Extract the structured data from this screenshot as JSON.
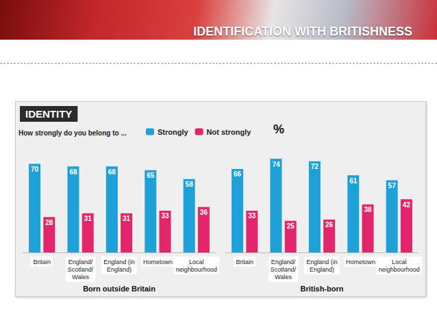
{
  "title": "IDENTIFICATION WITH BRITISHNESS",
  "header": "IDENTITY",
  "subtitle": "How strongly do you belong to ...",
  "unit": "%",
  "chart_data": [
    {
      "type": "bar",
      "title": "Born outside Britain",
      "categories": [
        "Britain",
        "England/ Scotland/ Wales",
        "England (in England)",
        "Hometown",
        "Local neighbourhood"
      ],
      "series": [
        {
          "name": "Strongly",
          "color": "#1ea0d8",
          "values": [
            70,
            68,
            68,
            65,
            58
          ]
        },
        {
          "name": "Not strongly",
          "color": "#e3256b",
          "values": [
            28,
            31,
            31,
            33,
            36
          ]
        }
      ],
      "ylim": [
        0,
        80
      ],
      "data_labels": true,
      "tick_labels": "x",
      "legend": "top-left"
    },
    {
      "type": "bar",
      "title": "British-born",
      "categories": [
        "Britain",
        "England/ Scotland/ Wales",
        "England (in England)",
        "Hometown",
        "Local neighbourhood"
      ],
      "series": [
        {
          "name": "Strongly",
          "color": "#1ea0d8",
          "values": [
            66,
            74,
            72,
            61,
            57
          ]
        },
        {
          "name": "Not strongly",
          "color": "#e3256b",
          "values": [
            33,
            25,
            26,
            38,
            42
          ]
        }
      ],
      "ylim": [
        0,
        80
      ],
      "data_labels": true,
      "tick_labels": "x"
    }
  ]
}
